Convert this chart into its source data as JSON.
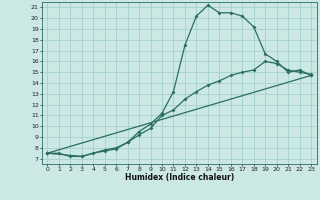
{
  "title": "",
  "xlabel": "Humidex (Indice chaleur)",
  "bg_color": "#cce8e4",
  "grid_color": "#a8d4cf",
  "line_color": "#2a6e63",
  "xlim": [
    -0.5,
    23.5
  ],
  "ylim": [
    6.5,
    21.5
  ],
  "xticks": [
    0,
    1,
    2,
    3,
    4,
    5,
    6,
    7,
    8,
    9,
    10,
    11,
    12,
    13,
    14,
    15,
    16,
    17,
    18,
    19,
    20,
    21,
    22,
    23
  ],
  "yticks": [
    7,
    8,
    9,
    10,
    11,
    12,
    13,
    14,
    15,
    16,
    17,
    18,
    19,
    20,
    21
  ],
  "curve1_x": [
    0,
    1,
    2,
    3,
    4,
    5,
    6,
    7,
    8,
    9,
    10,
    11,
    12,
    13,
    14,
    15,
    16,
    17,
    18,
    19,
    20,
    21,
    22,
    23
  ],
  "curve1_y": [
    7.5,
    7.5,
    7.2,
    7.2,
    7.5,
    7.7,
    7.9,
    8.5,
    9.5,
    10.2,
    11.2,
    13.2,
    17.5,
    20.2,
    21.2,
    20.5,
    20.5,
    20.2,
    19.2,
    16.7,
    16.0,
    15.0,
    15.2,
    14.7
  ],
  "curve2_x": [
    0,
    3,
    5,
    6,
    7,
    8,
    9,
    10,
    11,
    12,
    13,
    14,
    15,
    16,
    17,
    18,
    19,
    20,
    21,
    22,
    23
  ],
  "curve2_y": [
    7.5,
    7.2,
    7.8,
    8.0,
    8.5,
    9.2,
    9.8,
    11.0,
    11.5,
    12.5,
    13.2,
    13.8,
    14.2,
    14.7,
    15.0,
    15.2,
    16.0,
    15.8,
    15.2,
    15.0,
    14.8
  ],
  "curve3_x": [
    0,
    23
  ],
  "curve3_y": [
    7.5,
    14.7
  ]
}
